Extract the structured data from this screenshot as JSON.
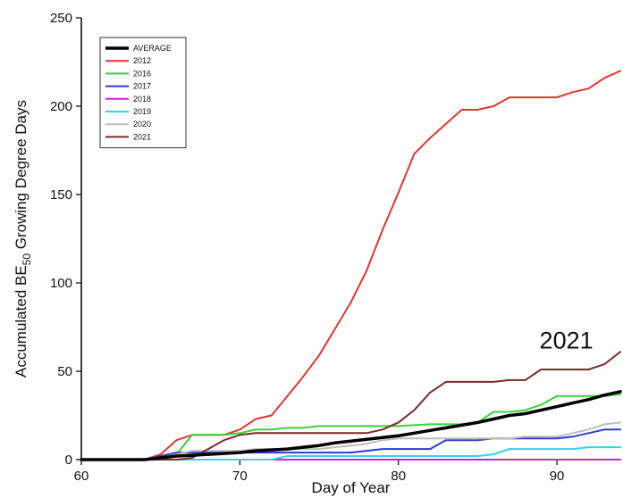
{
  "chart_data": {
    "type": "line",
    "title": "",
    "xlabel": "Day of Year",
    "ylabel_main": "Accumulated BE",
    "ylabel_sub": "50",
    "ylabel_tail": " Growing Degree Days",
    "xlim": [
      60,
      94
    ],
    "ylim": [
      0,
      250
    ],
    "x_ticks": [
      60,
      70,
      80,
      90
    ],
    "y_ticks": [
      0,
      50,
      100,
      150,
      200,
      250
    ],
    "grid": false,
    "legend_placement": "top-left",
    "annotation": "2021",
    "series": [
      {
        "name": "AVERAGE",
        "color": "#000000",
        "width": 3.5,
        "points": [
          [
            60,
            0
          ],
          [
            64,
            0
          ],
          [
            65,
            1
          ],
          [
            66,
            2
          ],
          [
            67,
            2.5
          ],
          [
            68,
            3
          ],
          [
            69,
            3.5
          ],
          [
            70,
            4
          ],
          [
            71,
            5
          ],
          [
            72,
            5.5
          ],
          [
            73,
            6
          ],
          [
            74,
            7
          ],
          [
            75,
            8
          ],
          [
            76,
            9.5
          ],
          [
            77,
            10.5
          ],
          [
            78,
            11.5
          ],
          [
            79,
            12.5
          ],
          [
            80,
            13.5
          ],
          [
            81,
            15
          ],
          [
            82,
            16.5
          ],
          [
            83,
            18
          ],
          [
            84,
            19.5
          ],
          [
            85,
            21
          ],
          [
            86,
            23
          ],
          [
            87,
            25
          ],
          [
            88,
            26
          ],
          [
            89,
            28
          ],
          [
            90,
            30
          ],
          [
            91,
            32
          ],
          [
            92,
            34
          ],
          [
            93,
            36.5
          ],
          [
            94,
            38.5
          ]
        ]
      },
      {
        "name": "2012",
        "color": "#e8332f",
        "width": 2,
        "points": [
          [
            60,
            0
          ],
          [
            64,
            0
          ],
          [
            65,
            3
          ],
          [
            66,
            11
          ],
          [
            67,
            14
          ],
          [
            68,
            14
          ],
          [
            69,
            14
          ],
          [
            70,
            17
          ],
          [
            71,
            23
          ],
          [
            72,
            25
          ],
          [
            73,
            36
          ],
          [
            74,
            47
          ],
          [
            75,
            59
          ],
          [
            76,
            74
          ],
          [
            77,
            89
          ],
          [
            78,
            107
          ],
          [
            79,
            130
          ],
          [
            80,
            151
          ],
          [
            81,
            173
          ],
          [
            82,
            182
          ],
          [
            83,
            190
          ],
          [
            84,
            198
          ],
          [
            85,
            198
          ],
          [
            86,
            200
          ],
          [
            87,
            205
          ],
          [
            88,
            205
          ],
          [
            89,
            205
          ],
          [
            90,
            205
          ],
          [
            91,
            208
          ],
          [
            92,
            210
          ],
          [
            93,
            216
          ],
          [
            94,
            220
          ]
        ]
      },
      {
        "name": "2016",
        "color": "#36d43a",
        "width": 2,
        "points": [
          [
            60,
            0
          ],
          [
            65,
            0
          ],
          [
            66,
            3
          ],
          [
            67,
            14
          ],
          [
            68,
            14
          ],
          [
            69,
            14
          ],
          [
            70,
            15
          ],
          [
            71,
            17
          ],
          [
            72,
            17
          ],
          [
            73,
            18
          ],
          [
            74,
            18
          ],
          [
            75,
            19
          ],
          [
            76,
            19
          ],
          [
            77,
            19
          ],
          [
            78,
            19
          ],
          [
            79,
            19
          ],
          [
            80,
            19
          ],
          [
            81,
            19.5
          ],
          [
            82,
            20
          ],
          [
            83,
            20
          ],
          [
            84,
            20
          ],
          [
            85,
            21
          ],
          [
            86,
            27
          ],
          [
            87,
            27
          ],
          [
            88,
            28
          ],
          [
            89,
            31
          ],
          [
            90,
            36
          ],
          [
            91,
            36
          ],
          [
            92,
            36
          ],
          [
            93,
            36
          ],
          [
            94,
            37
          ]
        ]
      },
      {
        "name": "2017",
        "color": "#2f3ad2",
        "width": 2,
        "points": [
          [
            60,
            0
          ],
          [
            64,
            0
          ],
          [
            65,
            2
          ],
          [
            66,
            4
          ],
          [
            67,
            4
          ],
          [
            68,
            4
          ],
          [
            69,
            4
          ],
          [
            70,
            4
          ],
          [
            71,
            4
          ],
          [
            72,
            4
          ],
          [
            73,
            4
          ],
          [
            74,
            4
          ],
          [
            75,
            4
          ],
          [
            76,
            4
          ],
          [
            77,
            4
          ],
          [
            78,
            5
          ],
          [
            79,
            6
          ],
          [
            80,
            6
          ],
          [
            81,
            6
          ],
          [
            82,
            6
          ],
          [
            83,
            11
          ],
          [
            84,
            11
          ],
          [
            85,
            11
          ],
          [
            86,
            12
          ],
          [
            87,
            12
          ],
          [
            88,
            12
          ],
          [
            89,
            12
          ],
          [
            90,
            12
          ],
          [
            91,
            13
          ],
          [
            92,
            15
          ],
          [
            93,
            17
          ],
          [
            94,
            17
          ]
        ]
      },
      {
        "name": "2018",
        "color": "#d21fd6",
        "width": 2,
        "points": [
          [
            60,
            0
          ],
          [
            94,
            0
          ]
        ]
      },
      {
        "name": "2019",
        "color": "#2bd8e3",
        "width": 2,
        "points": [
          [
            60,
            0
          ],
          [
            72,
            0
          ],
          [
            73,
            2
          ],
          [
            80,
            2
          ],
          [
            85,
            2
          ],
          [
            86,
            3
          ],
          [
            87,
            6
          ],
          [
            88,
            6
          ],
          [
            89,
            6
          ],
          [
            90,
            6
          ],
          [
            91,
            6
          ],
          [
            92,
            7
          ],
          [
            93,
            7
          ],
          [
            94,
            7
          ]
        ]
      },
      {
        "name": "2020",
        "color": "#bdbdbd",
        "width": 2,
        "points": [
          [
            60,
            0
          ],
          [
            64,
            0
          ],
          [
            65,
            1
          ],
          [
            66,
            3
          ],
          [
            67,
            5
          ],
          [
            68,
            5
          ],
          [
            69,
            5
          ],
          [
            70,
            5
          ],
          [
            71,
            6
          ],
          [
            72,
            6
          ],
          [
            73,
            6
          ],
          [
            74,
            6
          ],
          [
            75,
            6
          ],
          [
            76,
            7
          ],
          [
            77,
            8
          ],
          [
            78,
            9
          ],
          [
            79,
            11
          ],
          [
            80,
            12
          ],
          [
            81,
            12
          ],
          [
            82,
            12
          ],
          [
            83,
            12
          ],
          [
            84,
            12
          ],
          [
            85,
            12
          ],
          [
            86,
            12
          ],
          [
            87,
            12
          ],
          [
            88,
            13
          ],
          [
            89,
            13
          ],
          [
            90,
            13
          ],
          [
            91,
            15
          ],
          [
            92,
            17
          ],
          [
            93,
            20
          ],
          [
            94,
            21
          ]
        ]
      },
      {
        "name": "2021",
        "color": "#7a2c2a",
        "width": 2,
        "points": [
          [
            60,
            0
          ],
          [
            66,
            0
          ],
          [
            67,
            1
          ],
          [
            68,
            6
          ],
          [
            69,
            11
          ],
          [
            70,
            14
          ],
          [
            71,
            15
          ],
          [
            72,
            15
          ],
          [
            73,
            15
          ],
          [
            74,
            15
          ],
          [
            75,
            15
          ],
          [
            76,
            15
          ],
          [
            77,
            15
          ],
          [
            78,
            15
          ],
          [
            79,
            17
          ],
          [
            80,
            21
          ],
          [
            81,
            28
          ],
          [
            82,
            38
          ],
          [
            83,
            44
          ],
          [
            84,
            44
          ],
          [
            85,
            44
          ],
          [
            86,
            44
          ],
          [
            87,
            45
          ],
          [
            88,
            45
          ],
          [
            89,
            51
          ],
          [
            90,
            51
          ],
          [
            91,
            51
          ],
          [
            92,
            51
          ],
          [
            93,
            54
          ],
          [
            94,
            61
          ]
        ]
      }
    ]
  }
}
